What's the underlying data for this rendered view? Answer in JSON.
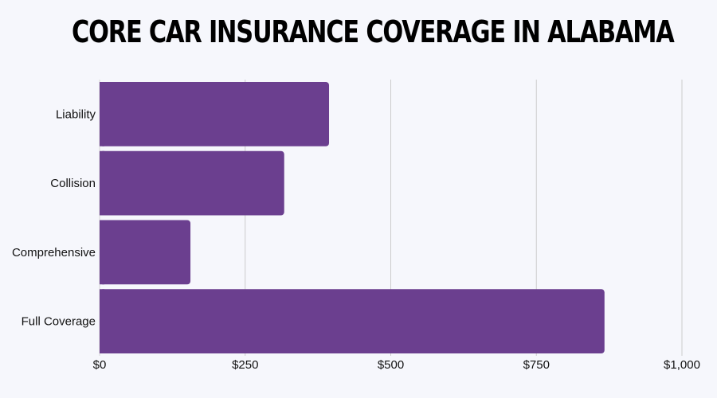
{
  "chart_data": {
    "type": "bar",
    "orientation": "horizontal",
    "title": "CORE CAR INSURANCE COVERAGE IN ALABAMA",
    "xlabel": "",
    "ylabel": "",
    "categories": [
      "Liability",
      "Collision",
      "Comprehensive",
      "Full Coverage"
    ],
    "values": [
      394,
      317,
      156,
      867
    ],
    "xlim": [
      0,
      1000
    ],
    "xticks": [
      0,
      250,
      500,
      750,
      1000
    ],
    "xtick_labels": [
      "$0",
      "$250",
      "$500",
      "$750",
      "$1,000"
    ],
    "grid": "vertical",
    "legend": "none",
    "bar_color": "#6b3f8f",
    "gridline_color": "#cccccc",
    "background": "#f6f7fc"
  }
}
